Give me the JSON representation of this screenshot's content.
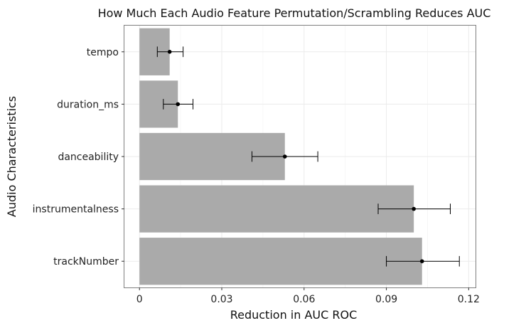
{
  "chart_data": {
    "type": "bar",
    "orientation": "horizontal",
    "title": "How Much Each Audio Feature Permutation/Scrambling Reduces AUC",
    "xlabel": "Reduction in AUC ROC",
    "ylabel": "Audio Characteristics",
    "xlim": [
      -0.0055,
      0.1225
    ],
    "x_ticks": [
      0,
      0.03,
      0.06,
      0.09,
      0.12
    ],
    "x_tick_labels": [
      "0",
      "0.03",
      "0.06",
      "0.09",
      "0.12"
    ],
    "grid": true,
    "categories": [
      "tempo",
      "duration_ms",
      "danceability",
      "instrumentalness",
      "trackNumber"
    ],
    "values": [
      0.011,
      0.014,
      0.053,
      0.1,
      0.103
    ],
    "points": [
      0.011,
      0.014,
      0.053,
      0.1,
      0.103
    ],
    "error_low": [
      0.0065,
      0.0087,
      0.041,
      0.087,
      0.09
    ],
    "error_high": [
      0.0159,
      0.0195,
      0.065,
      0.1133,
      0.1166
    ],
    "colors": {
      "bar": "#aaaaaa",
      "point": "#000000",
      "panel_border": "#7f7f7f",
      "grid": "#ebebeb"
    }
  }
}
